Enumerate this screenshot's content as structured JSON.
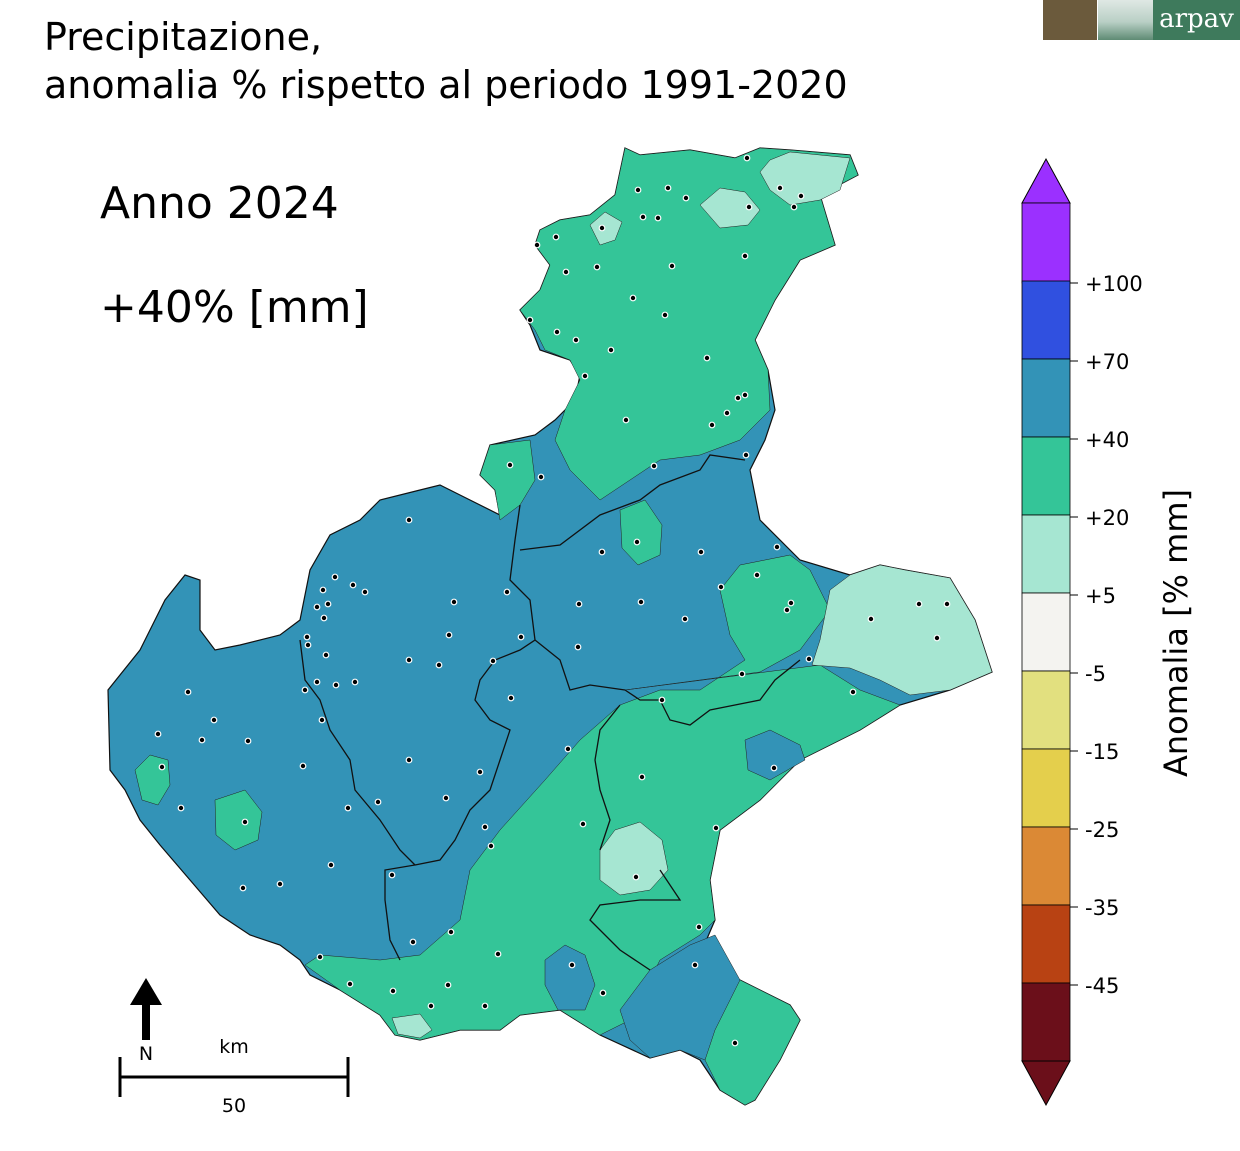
{
  "title_line1": "Precipitazione,",
  "title_line2": "anomalia % rispetto al periodo 1991-2020",
  "period_label": "Anno 2024",
  "anomaly_value": "+40% [mm]",
  "logo_text": "arpav",
  "colorbar": {
    "label": "Anomalia [% mm]",
    "ticks": [
      "+100",
      "+70",
      "+40",
      "+20",
      "+5",
      "-5",
      "-15",
      "-25",
      "-35",
      "-45"
    ],
    "bins": [
      {
        "range": "> +100",
        "color": "#9b30ff"
      },
      {
        "range": "+70 to +100",
        "color": "#3050e0"
      },
      {
        "range": "+40 to +70",
        "color": "#3393b7"
      },
      {
        "range": "+20 to +40",
        "color": "#34c598"
      },
      {
        "range": "+5 to +20",
        "color": "#a6e6d2"
      },
      {
        "range": "-5 to +5",
        "color": "#f4f3f0"
      },
      {
        "range": "-15 to -5",
        "color": "#e2e07f"
      },
      {
        "range": "-25 to -15",
        "color": "#e4cf4c"
      },
      {
        "range": "-35 to -25",
        "color": "#db8935"
      },
      {
        "range": "-45 to -35",
        "color": "#b84213"
      },
      {
        "range": "< -45",
        "color": "#6b0f1a"
      }
    ]
  },
  "north_label": "N",
  "scale_unit": "km",
  "scale_value": "50"
}
